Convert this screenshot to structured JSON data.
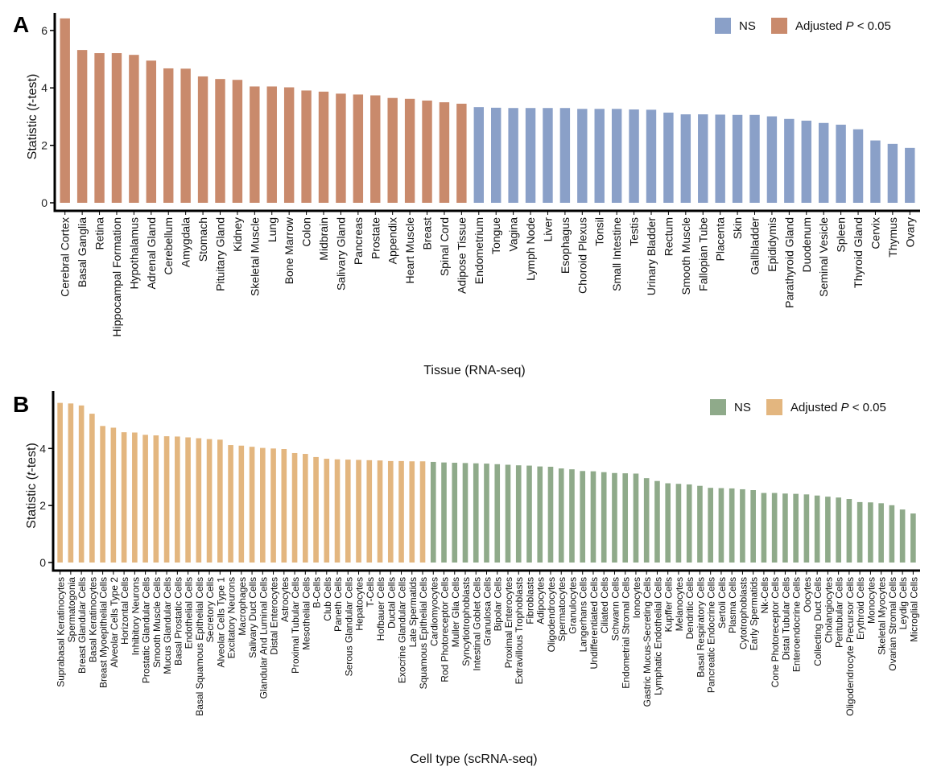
{
  "panels": [
    {
      "letter": "A",
      "chart_data": {
        "type": "bar",
        "xlabel": "Tissue (RNA-seq)",
        "ylabel": "Statistic (t-test)",
        "ylim": [
          0,
          6.5
        ],
        "yticks": [
          0,
          2,
          4,
          6
        ],
        "legend": {
          "placement": "top-right",
          "entries": [
            {
              "label": "NS",
              "color": "#8aa0c8"
            },
            {
              "label": "Adjusted P < 0.05",
              "color": "#c98a6c"
            }
          ]
        },
        "categories": [
          "Cerebral Cortex",
          "Basal Ganglia",
          "Retina",
          "Hippocampal Formation",
          "Hypothalamus",
          "Adrenal Gland",
          "Cerebellum",
          "Amygdala",
          "Stomach",
          "Pituitary Gland",
          "Kidney",
          "Skeletal Muscle",
          "Lung",
          "Bone Marrow",
          "Colon",
          "Midbrain",
          "Salivary Gland",
          "Pancreas",
          "Prostate",
          "Appendix",
          "Heart Muscle",
          "Breast",
          "Spinal Cord",
          "Adipose Tissue",
          "Endometrium",
          "Tongue",
          "Vagina",
          "Lymph Node",
          "Liver",
          "Esophagus",
          "Choroid Plexus",
          "Tonsil",
          "Small Intestine",
          "Testis",
          "Urinary Bladder",
          "Rectum",
          "Smooth Muscle",
          "Fallopian Tube",
          "Placenta",
          "Skin",
          "Gallbladder",
          "Epididymis",
          "Parathyroid Gland",
          "Duodenum",
          "Seminal Vesicle",
          "Spleen",
          "Thyroid Gland",
          "Cervix",
          "Thymus",
          "Ovary"
        ],
        "values": [
          6.42,
          5.32,
          5.21,
          5.21,
          5.15,
          4.95,
          4.68,
          4.67,
          4.4,
          4.31,
          4.28,
          4.05,
          4.05,
          4.02,
          3.91,
          3.87,
          3.8,
          3.77,
          3.74,
          3.65,
          3.62,
          3.56,
          3.5,
          3.45,
          3.33,
          3.31,
          3.3,
          3.3,
          3.3,
          3.3,
          3.27,
          3.27,
          3.27,
          3.25,
          3.24,
          3.14,
          3.08,
          3.08,
          3.07,
          3.06,
          3.06,
          3.01,
          2.92,
          2.86,
          2.78,
          2.72,
          2.56,
          2.17,
          2.05,
          1.91
        ],
        "significant_count": 24
      }
    },
    {
      "letter": "B",
      "chart_data": {
        "type": "bar",
        "xlabel": "Cell type (scRNA-seq)",
        "ylabel": "Statistic (t-test)",
        "ylim": [
          0,
          5.9
        ],
        "yticks": [
          0,
          2,
          4
        ],
        "legend": {
          "placement": "top-right",
          "entries": [
            {
              "label": "NS",
              "color": "#8faa8a"
            },
            {
              "label": "Adjusted P < 0.05",
              "color": "#e3b67f"
            }
          ]
        },
        "categories": [
          "Suprabasal Keratinocytes",
          "Spermatogonia",
          "Breast Glandular Cells",
          "Basal Keratinocytes",
          "Breast Myoepithelial Cells",
          "Alveolar Cells Type 2",
          "Horizontal Cells",
          "Inhibitory Neurons",
          "Prostatic Glandular Cells",
          "Smooth Muscle Cells",
          "Mucus Glandular Cells",
          "Basal Prostatic Cells",
          "Endothelial Cells",
          "Basal Squamous Epithelial Cells",
          "Secretory Cells",
          "Alveolar Cells Type 1",
          "Excitatory Neurons",
          "Macrophages",
          "Salivary Duct Cells",
          "Glandular And Luminal Cells",
          "Distal Enterocytes",
          "Astrocytes",
          "Proximal Tubular Cells",
          "Mesothelial Cells",
          "B-Cells",
          "Club Cells",
          "Paneth Cells",
          "Serous Glandular Cells",
          "Hepatocytes",
          "T-Cells",
          "Hofbauer Cells",
          "Ductal Cells",
          "Exocrine Glandular Cells",
          "Late Spermatids",
          "Squamous Epithelial Cells",
          "Cardiomyocytes",
          "Rod Photoreceptor Cells",
          "Muller Glia Cells",
          "Syncytiotrophoblasts",
          "Intestinal Goblet Cells",
          "Granulosa Cells",
          "Bipolar Cells",
          "Proximal Enterocytes",
          "Extravillous Trophoblasts",
          "Fibroblasts",
          "Adipocytes",
          "Oligodendrocytes",
          "Spermatocytes",
          "Granulocytes",
          "Langerhans Cells",
          "Undifferentiated Cells",
          "Ciliated Cells",
          "Schwann Cells",
          "Endometrial Stromal Cells",
          "Ionocytes",
          "Gastric Mucus-Secreting Cells",
          "Lymphatic Endothelial Cells",
          "Kupffer Cells",
          "Melanocytes",
          "Dendritic Cells",
          "Basal Respiratory Cells",
          "Pancreatic Endocrine Cells",
          "Sertoli Cells",
          "Plasma Cells",
          "Cytotrophoblasts",
          "Early Spermatids",
          "Nk-Cells",
          "Cone Photoreceptor Cells",
          "Distal Tubular Cells",
          "Enteroendocrine Cells",
          "Oocytes",
          "Collecting Duct Cells",
          "Cholangiocytes",
          "Peritubular Cells",
          "Oligodendrocyte Precursor Cells",
          "Erythroid Cells",
          "Monocytes",
          "Skeletal Myocytes",
          "Ovarian Stromal Cells",
          "Leydig Cells",
          "Microglial Cells"
        ],
        "values": [
          5.6,
          5.58,
          5.51,
          5.22,
          4.79,
          4.73,
          4.57,
          4.56,
          4.48,
          4.46,
          4.43,
          4.42,
          4.39,
          4.36,
          4.33,
          4.31,
          4.12,
          4.1,
          4.06,
          4.02,
          4.0,
          3.98,
          3.84,
          3.81,
          3.7,
          3.64,
          3.62,
          3.61,
          3.6,
          3.59,
          3.58,
          3.56,
          3.56,
          3.55,
          3.55,
          3.53,
          3.51,
          3.5,
          3.49,
          3.48,
          3.47,
          3.45,
          3.43,
          3.41,
          3.4,
          3.37,
          3.36,
          3.3,
          3.27,
          3.21,
          3.2,
          3.17,
          3.14,
          3.13,
          3.12,
          2.96,
          2.86,
          2.78,
          2.76,
          2.74,
          2.69,
          2.62,
          2.61,
          2.6,
          2.57,
          2.54,
          2.44,
          2.44,
          2.42,
          2.41,
          2.39,
          2.35,
          2.31,
          2.28,
          2.23,
          2.12,
          2.11,
          2.08,
          2.01,
          1.86,
          1.72
        ],
        "significant_count": 35
      }
    }
  ]
}
